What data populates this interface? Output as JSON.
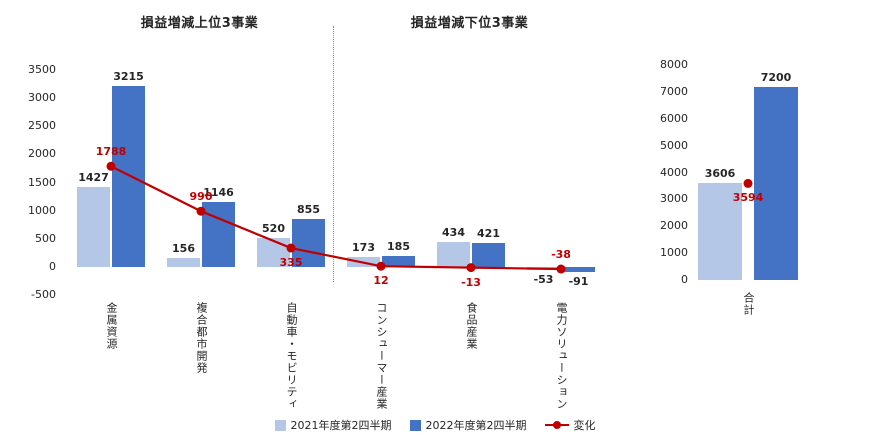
{
  "colors": {
    "fy2021": "#b4c7e7",
    "fy2022": "#4472c4",
    "change": "#c00000"
  },
  "chart_data": [
    {
      "type": "bar",
      "section_titles": [
        "損益増減上位3事業",
        "損益増減下位3事業"
      ],
      "categories": [
        "金属資源",
        "複合都市開発",
        "自動車・モビリティ",
        "コンシューマー産業",
        "食品産業",
        "電力ソリューション"
      ],
      "series": [
        {
          "name": "2021年度第2四半期",
          "type": "bar",
          "values": [
            1427,
            156,
            520,
            173,
            434,
            -53
          ]
        },
        {
          "name": "2022年度第2四半期",
          "type": "bar",
          "values": [
            3215,
            1146,
            855,
            185,
            421,
            -91
          ]
        },
        {
          "name": "変化",
          "type": "line",
          "values": [
            1788,
            990,
            335,
            12,
            -13,
            -38
          ],
          "label_pos": [
            "above",
            "above",
            "below",
            "below",
            "below",
            "above"
          ]
        }
      ],
      "ylim": [
        -500,
        3500
      ],
      "ytick_step": 500,
      "grid": false,
      "legend_position": "bottom"
    },
    {
      "type": "bar",
      "categories": [
        "合計"
      ],
      "series": [
        {
          "name": "2021年度第2四半期",
          "type": "bar",
          "values": [
            3606
          ]
        },
        {
          "name": "2022年度第2四半期",
          "type": "bar",
          "values": [
            7200
          ]
        },
        {
          "name": "変化",
          "type": "point",
          "values": [
            3594
          ],
          "label_pos": [
            "below"
          ]
        }
      ],
      "ylim": [
        0,
        8000
      ],
      "ytick_step": 1000,
      "grid": false
    }
  ]
}
